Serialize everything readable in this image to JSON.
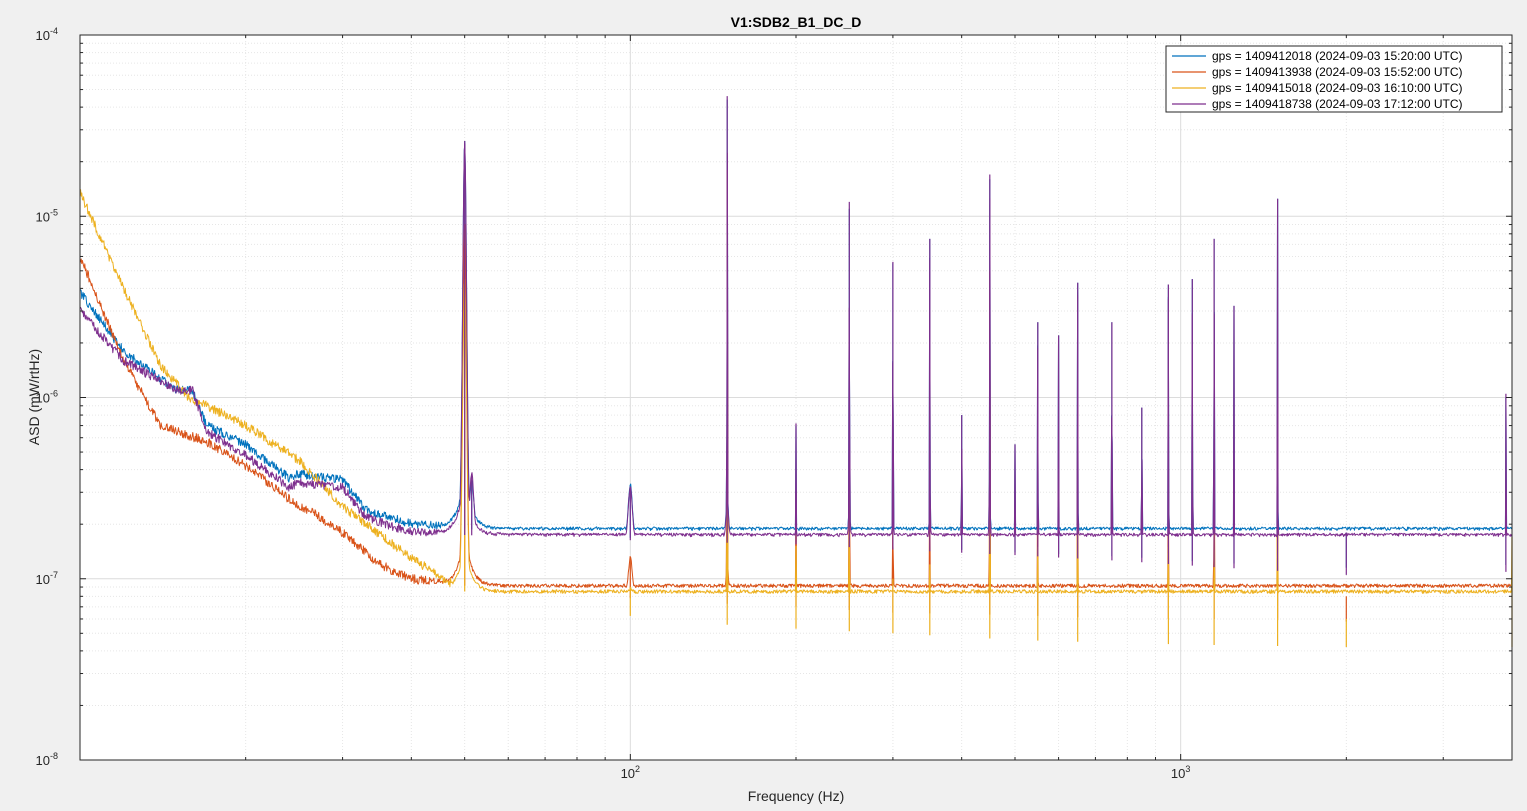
{
  "chart_data": {
    "type": "line",
    "title": "V1:SDB2_B1_DC_D",
    "xlabel": "Frequency (Hz)",
    "ylabel": "ASD (mW/rtHz)",
    "xscale": "log",
    "yscale": "log",
    "xlim": [
      10,
      4000
    ],
    "ylim": [
      1e-08,
      0.0001
    ],
    "grid": true,
    "legend_position": "top-right",
    "x_ticks": [
      {
        "value": 100,
        "base": "10",
        "exp": "2"
      },
      {
        "value": 1000,
        "base": "10",
        "exp": "3"
      }
    ],
    "y_ticks": [
      {
        "value": 1e-08,
        "base": "10",
        "exp": "-8"
      },
      {
        "value": 1e-07,
        "base": "10",
        "exp": "-7"
      },
      {
        "value": 1e-06,
        "base": "10",
        "exp": "-6"
      },
      {
        "value": 1e-05,
        "base": "10",
        "exp": "-5"
      },
      {
        "value": 0.0001,
        "base": "10",
        "exp": "-4"
      }
    ],
    "series": [
      {
        "name": "gps = 1409412018 (2024-09-03 15:20:00 UTC)",
        "color": "#0072bd",
        "baseline": [
          [
            10,
            3.8e-06
          ],
          [
            12,
            1.8e-06
          ],
          [
            15,
            1.1e-06
          ],
          [
            16,
            1.1e-06
          ],
          [
            17,
            7e-07
          ],
          [
            20,
            5.5e-07
          ],
          [
            24,
            3.6e-07
          ],
          [
            25,
            3.8e-07
          ],
          [
            30,
            3.5e-07
          ],
          [
            33,
            2.4e-07
          ],
          [
            40,
            2e-07
          ],
          [
            60,
            1.8e-07
          ],
          [
            90,
            1.7e-07
          ],
          [
            120,
            1.65e-07
          ],
          [
            200,
            1.6e-07
          ],
          [
            300,
            1.5e-07
          ],
          [
            500,
            1.4e-07
          ],
          [
            800,
            1.32e-07
          ],
          [
            1200,
            1.22e-07
          ],
          [
            2000,
            1.15e-07
          ],
          [
            3000,
            1.1e-07
          ],
          [
            4000,
            1.2e-07
          ]
        ],
        "peaks": [
          [
            50,
            2.6e-05
          ],
          [
            51.5,
            3.5e-07
          ],
          [
            100,
            3.3e-07
          ],
          [
            150,
            4.4e-05
          ],
          [
            200,
            7e-07
          ],
          [
            250,
            1.1e-05
          ],
          [
            300,
            5.5e-06
          ],
          [
            350,
            7.5e-06
          ],
          [
            400,
            8e-07
          ],
          [
            450,
            1.6e-05
          ],
          [
            500,
            5.5e-07
          ],
          [
            550,
            2.6e-06
          ],
          [
            600,
            2.2e-06
          ],
          [
            650,
            4.3e-06
          ],
          [
            750,
            2.6e-06
          ],
          [
            850,
            8.8e-07
          ],
          [
            950,
            4.2e-06
          ],
          [
            1050,
            4.5e-06
          ],
          [
            1150,
            7.5e-06
          ],
          [
            1250,
            3.2e-06
          ],
          [
            1500,
            1.25e-05
          ],
          [
            2000,
            1.8e-07
          ],
          [
            3900,
            1e-06
          ]
        ]
      },
      {
        "name": "gps = 1409413938 (2024-09-03 15:52:00 UTC)",
        "color": "#d95319",
        "baseline": [
          [
            10,
            6e-06
          ],
          [
            12,
            1.6e-06
          ],
          [
            14,
            7e-07
          ],
          [
            17,
            5.7e-07
          ],
          [
            20,
            4.2e-07
          ],
          [
            25,
            2.5e-07
          ],
          [
            26,
            2.4e-07
          ],
          [
            30,
            1.8e-07
          ],
          [
            35,
            1.2e-07
          ],
          [
            40,
            1e-07
          ],
          [
            60,
            8.5e-08
          ],
          [
            90,
            8e-08
          ],
          [
            120,
            7.5e-08
          ],
          [
            200,
            7e-08
          ],
          [
            300,
            6.5e-08
          ],
          [
            500,
            6.3e-08
          ],
          [
            800,
            6e-08
          ],
          [
            1200,
            6e-08
          ],
          [
            2000,
            5.8e-08
          ],
          [
            3000,
            5.7e-08
          ],
          [
            4000,
            6.5e-08
          ]
        ],
        "peaks": [
          [
            50,
            9e-06
          ],
          [
            100,
            1.3e-07
          ],
          [
            150,
            1.8e-05
          ],
          [
            200,
            3e-07
          ],
          [
            250,
            1e-06
          ],
          [
            300,
            3e-07
          ],
          [
            350,
            4e-07
          ],
          [
            450,
            5e-06
          ],
          [
            550,
            4e-07
          ],
          [
            650,
            9e-07
          ],
          [
            950,
            4e-07
          ],
          [
            1150,
            6e-07
          ],
          [
            1500,
            1e-06
          ],
          [
            2000,
            8e-08
          ]
        ]
      },
      {
        "name": "gps = 1409415018 (2024-09-03 16:10:00 UTC)",
        "color": "#edb120",
        "baseline": [
          [
            10,
            1.35e-05
          ],
          [
            12,
            4e-06
          ],
          [
            14,
            1.5e-06
          ],
          [
            16,
            9.5e-07
          ],
          [
            17,
            9e-07
          ],
          [
            20,
            7e-07
          ],
          [
            25,
            4.5e-07
          ],
          [
            30,
            2.5e-07
          ],
          [
            40,
            1.3e-07
          ],
          [
            50,
            8.5e-08
          ],
          [
            60,
            7.5e-08
          ],
          [
            90,
            6.5e-08
          ],
          [
            120,
            5.8e-08
          ],
          [
            200,
            5.3e-08
          ],
          [
            300,
            5e-08
          ],
          [
            500,
            4.6e-08
          ],
          [
            800,
            4.4e-08
          ],
          [
            1200,
            4.3e-08
          ],
          [
            2000,
            4.2e-08
          ],
          [
            3000,
            4e-08
          ],
          [
            4000,
            4.2e-08
          ]
        ],
        "peaks": [
          [
            50,
            4.5e-06
          ],
          [
            100,
            9e-08
          ],
          [
            150,
            8e-06
          ],
          [
            200,
            1.5e-07
          ],
          [
            250,
            3e-07
          ],
          [
            300,
            1e-07
          ],
          [
            350,
            1.2e-07
          ],
          [
            450,
            2e-06
          ],
          [
            550,
            1.5e-07
          ],
          [
            650,
            3e-07
          ],
          [
            950,
            1.5e-07
          ],
          [
            1150,
            2e-07
          ],
          [
            1500,
            5e-07
          ],
          [
            2000,
            6e-08
          ],
          [
            4000,
            1.7e-07
          ]
        ]
      },
      {
        "name": "gps = 1409418738 (2024-09-03 17:12:00 UTC)",
        "color": "#7e2f8e",
        "baseline": [
          [
            10,
            3e-06
          ],
          [
            12,
            1.6e-06
          ],
          [
            15,
            1.1e-06
          ],
          [
            16,
            1.1e-06
          ],
          [
            17,
            6.5e-07
          ],
          [
            20,
            4.8e-07
          ],
          [
            24,
            3.2e-07
          ],
          [
            25,
            3.4e-07
          ],
          [
            30,
            3.2e-07
          ],
          [
            33,
            2.2e-07
          ],
          [
            40,
            1.8e-07
          ],
          [
            60,
            1.7e-07
          ],
          [
            90,
            1.65e-07
          ],
          [
            120,
            1.6e-07
          ],
          [
            200,
            1.55e-07
          ],
          [
            300,
            1.45e-07
          ],
          [
            500,
            1.35e-07
          ],
          [
            800,
            1.25e-07
          ],
          [
            1200,
            1.15e-07
          ],
          [
            2000,
            1.05e-07
          ],
          [
            3000,
            1e-07
          ],
          [
            4000,
            1.1e-07
          ]
        ],
        "peaks": [
          [
            50,
            2.6e-05
          ],
          [
            51.5,
            3.8e-07
          ],
          [
            100,
            3.2e-07
          ],
          [
            150,
            4.6e-05
          ],
          [
            200,
            7.2e-07
          ],
          [
            250,
            1.2e-05
          ],
          [
            300,
            5.6e-06
          ],
          [
            350,
            7.5e-06
          ],
          [
            400,
            8e-07
          ],
          [
            450,
            1.7e-05
          ],
          [
            500,
            5.5e-07
          ],
          [
            550,
            2.6e-06
          ],
          [
            600,
            2.2e-06
          ],
          [
            650,
            4.3e-06
          ],
          [
            750,
            2.6e-06
          ],
          [
            850,
            8.8e-07
          ],
          [
            950,
            4.2e-06
          ],
          [
            1050,
            4.5e-06
          ],
          [
            1150,
            7.5e-06
          ],
          [
            1250,
            3.2e-06
          ],
          [
            1500,
            1.25e-05
          ],
          [
            2000,
            1.8e-07
          ],
          [
            3900,
            1.05e-06
          ]
        ]
      }
    ]
  }
}
